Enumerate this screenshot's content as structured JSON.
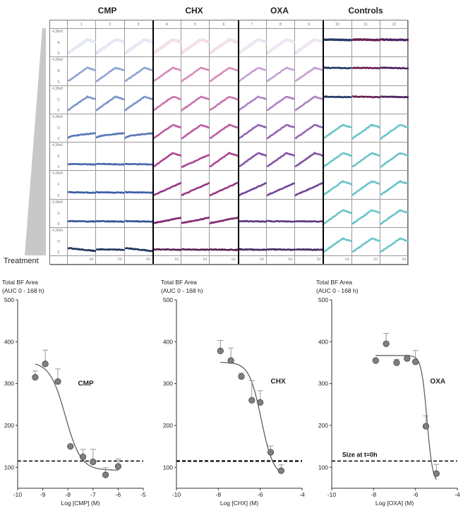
{
  "plate": {
    "group_titles": [
      "CMP",
      "CHX",
      "OXA",
      "Controls"
    ],
    "columns": [
      "1",
      "2",
      "3",
      "4",
      "5",
      "6",
      "7",
      "8",
      "9",
      "10",
      "11",
      "12"
    ],
    "y_max_label": "4,38e5",
    "y_min_label": "0",
    "time_label": "6d",
    "treatment_label": "Treatment",
    "rows": [
      {
        "label": "A",
        "patterns": [
          "rise",
          "rise",
          "rise",
          "rise",
          "rise",
          "rise",
          "rise",
          "rise",
          "rise",
          "flat",
          "flat",
          "flat"
        ],
        "colors": [
          "#c9d1ea",
          "#c9d1ea",
          "#c9d1ea",
          "#e6bcd6",
          "#e6bcd6",
          "#e6bcd6",
          "#dccbe4",
          "#dccbe4",
          "#dccbe4",
          "#243a66",
          "#6a2050",
          "#4a2560"
        ]
      },
      {
        "label": "B",
        "patterns": [
          "rise",
          "rise",
          "rise",
          "rise",
          "rise",
          "rise",
          "rise",
          "rise",
          "rise",
          "flat",
          "flat",
          "flat"
        ],
        "colors": [
          "#8ea3d2",
          "#8ea3d2",
          "#8ea3d2",
          "#d78cbb",
          "#d78cbb",
          "#d78cbb",
          "#c4a2d3",
          "#c4a2d3",
          "#c4a2d3",
          "#243a66",
          "#6a2050",
          "#4a2560"
        ]
      },
      {
        "label": "C",
        "patterns": [
          "rise",
          "rise",
          "rise",
          "rise",
          "rise",
          "rise",
          "rise",
          "rise",
          "rise",
          "flat",
          "flat",
          "flat"
        ],
        "colors": [
          "#7a95ca",
          "#7a95ca",
          "#7a95ca",
          "#cc74ae",
          "#cc74ae",
          "#cc74ae",
          "#ad85c4",
          "#ad85c4",
          "#ad85c4",
          "#243a66",
          "#6a2050",
          "#4a2560"
        ]
      },
      {
        "label": "D",
        "patterns": [
          "slow",
          "slow",
          "slow",
          "rise",
          "rise",
          "rise",
          "rise",
          "rise",
          "rise",
          "rise",
          "rise",
          "rise"
        ],
        "colors": [
          "#5a78b8",
          "#5a78b8",
          "#5a78b8",
          "#bd5ca0",
          "#bd5ca0",
          "#bd5ca0",
          "#9467b2",
          "#9467b2",
          "#9467b2",
          "#6cc4c8",
          "#6cc4c8",
          "#6cc4c8"
        ]
      },
      {
        "label": "E",
        "patterns": [
          "flat",
          "flat",
          "flat",
          "rise",
          "lin",
          "rise",
          "rise",
          "rise",
          "rise",
          "rise",
          "rise",
          "rise"
        ],
        "colors": [
          "#4a68ad",
          "#4a68ad",
          "#4a68ad",
          "#ad4893",
          "#ad4893",
          "#ad4893",
          "#8554a6",
          "#8554a6",
          "#8554a6",
          "#6cc4c8",
          "#6cc4c8",
          "#6cc4c8"
        ]
      },
      {
        "label": "F",
        "patterns": [
          "flat",
          "flat",
          "flat",
          "lin",
          "lin",
          "lin",
          "lin",
          "lin",
          "lin",
          "rise",
          "rise",
          "rise"
        ],
        "colors": [
          "#3f5ea6",
          "#3f5ea6",
          "#3f5ea6",
          "#9a3a86",
          "#9a3a86",
          "#9a3a86",
          "#724896",
          "#724896",
          "#724896",
          "#6cc4c8",
          "#6cc4c8",
          "#6cc4c8"
        ]
      },
      {
        "label": "G",
        "patterns": [
          "flat",
          "flat",
          "flat",
          "lowlin",
          "lowlin",
          "lowlin",
          "flat",
          "flat",
          "flat",
          "rise",
          "rise",
          "rise"
        ],
        "colors": [
          "#34569a",
          "#34569a",
          "#34569a",
          "#7e2a70",
          "#7e2a70",
          "#7e2a70",
          "#5c3a82",
          "#5c3a82",
          "#5c3a82",
          "#6cc4c8",
          "#6cc4c8",
          "#6cc4c8"
        ]
      },
      {
        "label": "H",
        "patterns": [
          "decl",
          "flat",
          "decl",
          "flat",
          "flat",
          "flat",
          "flat",
          "flat",
          "flat",
          "rise",
          "rise",
          "rise"
        ],
        "colors": [
          "#22355e",
          "#22355e",
          "#22355e",
          "#5a2050",
          "#5a2050",
          "#5a2050",
          "#452c65",
          "#452c65",
          "#452c65",
          "#6cc4c8",
          "#6cc4c8",
          "#6cc4c8"
        ]
      }
    ]
  },
  "chart_data": [
    {
      "type": "scatter",
      "ylabel": [
        "Total BF Area",
        "(AUC 0 - 168 h)"
      ],
      "xlabel": "Log [CMP] (M)",
      "annotation": "CMP",
      "xlim": [
        -10,
        -5
      ],
      "ylim": [
        50,
        500
      ],
      "xticks": [
        -10,
        -9,
        -8,
        -7,
        -6,
        -5
      ],
      "yticks": [
        100,
        200,
        300,
        400,
        500
      ],
      "x": [
        -9.3,
        -8.9,
        -8.4,
        -7.9,
        -7.4,
        -7.0,
        -6.5,
        -6.0
      ],
      "y": [
        315,
        347,
        305,
        150,
        125,
        113,
        82,
        102
      ],
      "error": [
        15,
        33,
        30,
        0,
        18,
        30,
        17,
        18
      ],
      "fit": {
        "top": 352,
        "bottom": 93,
        "log_ec50": -8.1,
        "hill": 1.4,
        "range": [
          -9.3,
          -6.0
        ]
      },
      "reference_line": 115,
      "point_color": "#7f7f7f"
    },
    {
      "type": "scatter",
      "ylabel": [
        "Total BF Area",
        "(AUC 0 - 168 h)"
      ],
      "xlabel": "Log [CHX] (M)",
      "annotation": "CHX",
      "xlim": [
        -10,
        -4
      ],
      "ylim": [
        50,
        500
      ],
      "xticks": [
        -10,
        -8,
        -6,
        -4
      ],
      "yticks": [
        100,
        200,
        300,
        400,
        500
      ],
      "x": [
        -7.9,
        -7.4,
        -6.9,
        -6.4,
        -6.0,
        -5.5,
        -5.0
      ],
      "y": [
        378,
        355,
        317,
        260,
        255,
        136,
        92
      ],
      "error": [
        25,
        30,
        8,
        47,
        28,
        15,
        14
      ],
      "fit": {
        "top": 351,
        "bottom": 78,
        "log_ec50": -5.95,
        "hill": 1.5,
        "range": [
          -7.9,
          -5.0
        ]
      },
      "reference_line": 115,
      "point_color": "#7f7f7f"
    },
    {
      "type": "scatter",
      "ylabel": [
        "Total BF Area",
        "(AUC 0 - 168 h)"
      ],
      "xlabel": "Log [OXA] (M)",
      "annotation": "OXA",
      "reference_label": "Size at t=0h",
      "xlim": [
        -10,
        -4
      ],
      "ylim": [
        50,
        500
      ],
      "xticks": [
        -10,
        -8,
        -6,
        -4
      ],
      "yticks": [
        100,
        200,
        300,
        400,
        500
      ],
      "x": [
        -7.9,
        -7.4,
        -6.9,
        -6.4,
        -6.0,
        -5.5,
        -5.0
      ],
      "y": [
        355,
        395,
        350,
        360,
        352,
        198,
        85
      ],
      "error": [
        0,
        25,
        8,
        8,
        27,
        25,
        22
      ],
      "fit": {
        "top": 367,
        "bottom": 60,
        "log_ec50": -5.45,
        "hill": 3.2,
        "range": [
          -7.9,
          -5.0
        ]
      },
      "reference_line": 115,
      "point_color": "#7f7f7f"
    }
  ]
}
